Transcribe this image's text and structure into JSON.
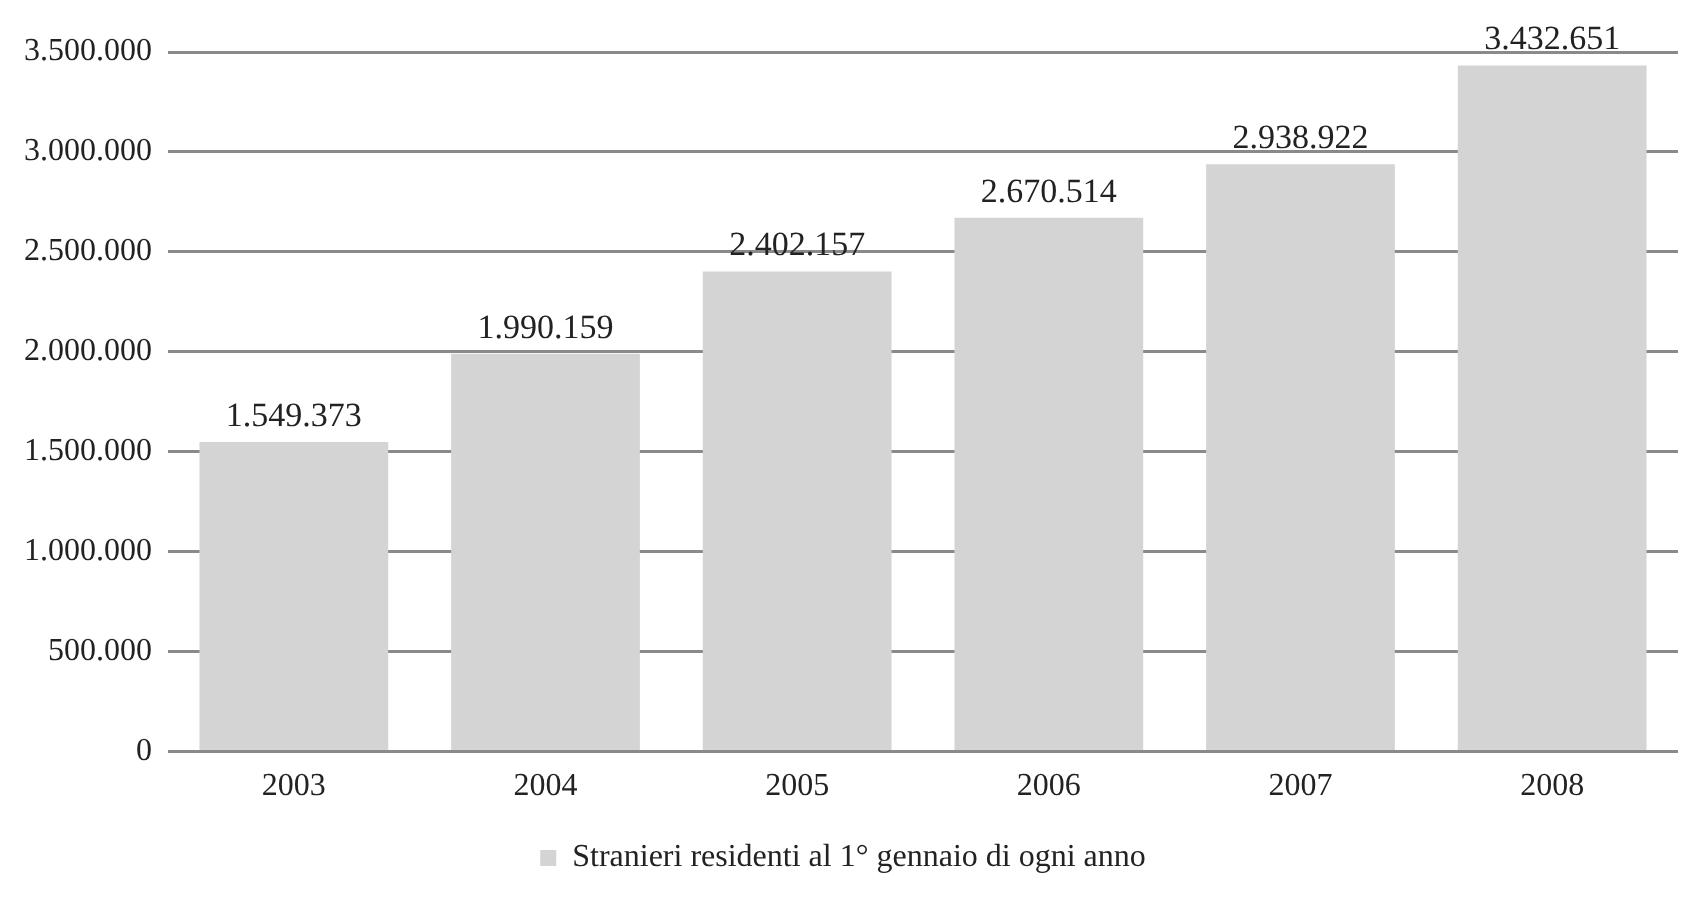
{
  "chart_data": {
    "type": "bar",
    "categories": [
      "2003",
      "2004",
      "2005",
      "2006",
      "2007",
      "2008"
    ],
    "series": [
      {
        "name": "Stranieri residenti al 1° gennaio di ogni anno",
        "color": "#d4d4d4",
        "values": [
          1549373,
          1990159,
          2402157,
          2670514,
          2938922,
          3432651
        ],
        "value_labels": [
          "1.549.373",
          "1.990.159",
          "2.402.157",
          "2.670.514",
          "2.938.922",
          "3.432.651"
        ]
      }
    ],
    "ylim": [
      0,
      3500000
    ],
    "yticks": [
      0,
      {
        "value": 500000,
        "label": "500.000"
      },
      {
        "value": 1000000,
        "label": "1.000.000"
      },
      {
        "value": 1500000,
        "label": "1.500.000"
      },
      {
        "value": 2000000,
        "label": "2.000.000"
      },
      {
        "value": 2500000,
        "label": "2.500.000"
      },
      {
        "value": 3000000,
        "label": "3.000.000"
      },
      {
        "value": 3500000,
        "label": "3.500.000"
      }
    ],
    "grid": "y",
    "legend": "bottom"
  }
}
